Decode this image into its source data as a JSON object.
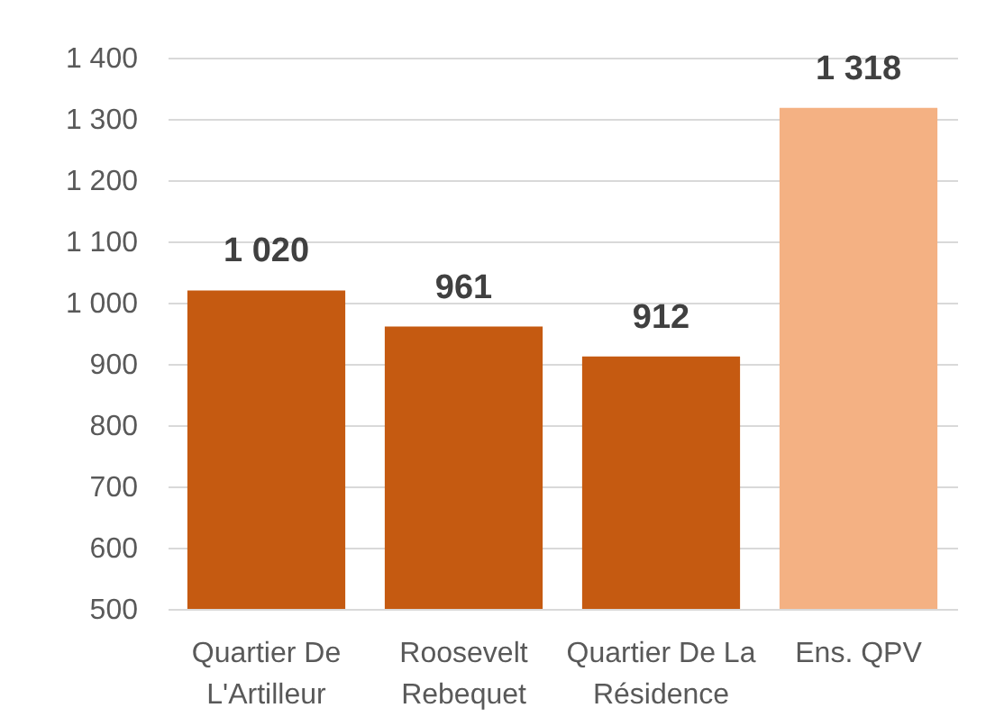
{
  "chart_data": {
    "type": "bar",
    "categories": [
      "Quartier De L'Artilleur",
      "Roosevelt Rebequet",
      "Quartier De La Résidence",
      "Ens. QPV"
    ],
    "values": [
      1020,
      961,
      912,
      1318
    ],
    "colors": [
      "#c55a11",
      "#c55a11",
      "#c55a11",
      "#f4b183"
    ],
    "value_labels": [
      "1 020",
      "961",
      "912",
      "1 318"
    ],
    "ylim": [
      500,
      1400
    ],
    "yticks": [
      500,
      600,
      700,
      800,
      900,
      {
        "value": 1000,
        "label": "1 000"
      },
      {
        "value": 1100,
        "label": "1 100"
      },
      {
        "value": 1200,
        "label": "1 200"
      },
      {
        "value": 1300,
        "label": "1 300"
      },
      {
        "value": 1400,
        "label": "1 400"
      }
    ],
    "grid": "y"
  }
}
